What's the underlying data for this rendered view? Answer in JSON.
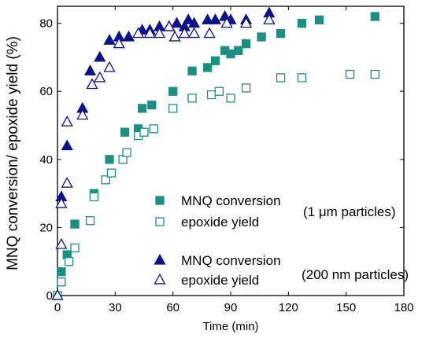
{
  "chart_data": {
    "type": "scatter",
    "xlabel": "Time (min)",
    "ylabel": "MNQ conversion/ epoxide yield (%)",
    "xlim": [
      0,
      180
    ],
    "ylim": [
      0,
      85
    ],
    "xticks": [
      0,
      30,
      60,
      90,
      120,
      150,
      180
    ],
    "yticks": [
      0,
      20,
      40,
      60,
      80
    ],
    "grid": false,
    "colors": {
      "teal": "#1a8f82",
      "navy": "#0c1287"
    },
    "groups": [
      {
        "label": "(1 μm particles)",
        "series": [
          0,
          1
        ]
      },
      {
        "label": "(200 nm particles)",
        "series": [
          2,
          3
        ]
      }
    ],
    "series": [
      {
        "name": "MNQ conversion",
        "marker": "square-filled",
        "color": "#1a8f82",
        "points": [
          [
            2,
            7
          ],
          [
            5,
            12
          ],
          [
            9,
            21
          ],
          [
            19,
            30
          ],
          [
            27,
            40
          ],
          [
            35,
            48
          ],
          [
            42,
            49
          ],
          [
            44,
            55
          ],
          [
            49,
            56
          ],
          [
            60,
            60
          ],
          [
            70,
            66
          ],
          [
            78,
            67
          ],
          [
            82,
            69
          ],
          [
            87,
            72
          ],
          [
            90,
            71
          ],
          [
            94,
            72
          ],
          [
            98,
            74
          ],
          [
            106,
            76
          ],
          [
            116,
            77
          ],
          [
            127,
            80
          ],
          [
            136,
            81
          ],
          [
            165,
            82
          ]
        ]
      },
      {
        "name": "epoxide yield",
        "marker": "square-open",
        "color": "#1a8f82",
        "points": [
          [
            0,
            0
          ],
          [
            2,
            4
          ],
          [
            6,
            10
          ],
          [
            9,
            14
          ],
          [
            17,
            22
          ],
          [
            19,
            29
          ],
          [
            25,
            34
          ],
          [
            28,
            36
          ],
          [
            34,
            40
          ],
          [
            36,
            42
          ],
          [
            42,
            47
          ],
          [
            45,
            48
          ],
          [
            50,
            49
          ],
          [
            60,
            55
          ],
          [
            70,
            58
          ],
          [
            80,
            59
          ],
          [
            84,
            60
          ],
          [
            90,
            58
          ],
          [
            98,
            61
          ],
          [
            116,
            64
          ],
          [
            127,
            64
          ],
          [
            152,
            65
          ],
          [
            165,
            65
          ]
        ]
      },
      {
        "name": "MNQ conversion",
        "marker": "triangle-filled",
        "color": "#0c1287",
        "points": [
          [
            2,
            29
          ],
          [
            5,
            44
          ],
          [
            13,
            55
          ],
          [
            17,
            66
          ],
          [
            22,
            70
          ],
          [
            27,
            75
          ],
          [
            32,
            76
          ],
          [
            37,
            76
          ],
          [
            44,
            78
          ],
          [
            48,
            78
          ],
          [
            53,
            79
          ],
          [
            58,
            79
          ],
          [
            62,
            80
          ],
          [
            66,
            79
          ],
          [
            68,
            81
          ],
          [
            71,
            80
          ],
          [
            78,
            81
          ],
          [
            82,
            81
          ],
          [
            87,
            82
          ],
          [
            90,
            81
          ],
          [
            98,
            81
          ],
          [
            110,
            83
          ]
        ]
      },
      {
        "name": "epoxide yield",
        "marker": "triangle-open",
        "color": "#0c1287",
        "points": [
          [
            0,
            0
          ],
          [
            2,
            15
          ],
          [
            2,
            27
          ],
          [
            5,
            33
          ],
          [
            5,
            51
          ],
          [
            13,
            53
          ],
          [
            18,
            62
          ],
          [
            22,
            64
          ],
          [
            27,
            67
          ],
          [
            32,
            74
          ],
          [
            42,
            77
          ],
          [
            48,
            77
          ],
          [
            53,
            77
          ],
          [
            58,
            79
          ],
          [
            61,
            76
          ],
          [
            66,
            77
          ],
          [
            71,
            77
          ],
          [
            79,
            77
          ],
          [
            88,
            80
          ],
          [
            98,
            80
          ],
          [
            110,
            81
          ]
        ]
      }
    ]
  }
}
